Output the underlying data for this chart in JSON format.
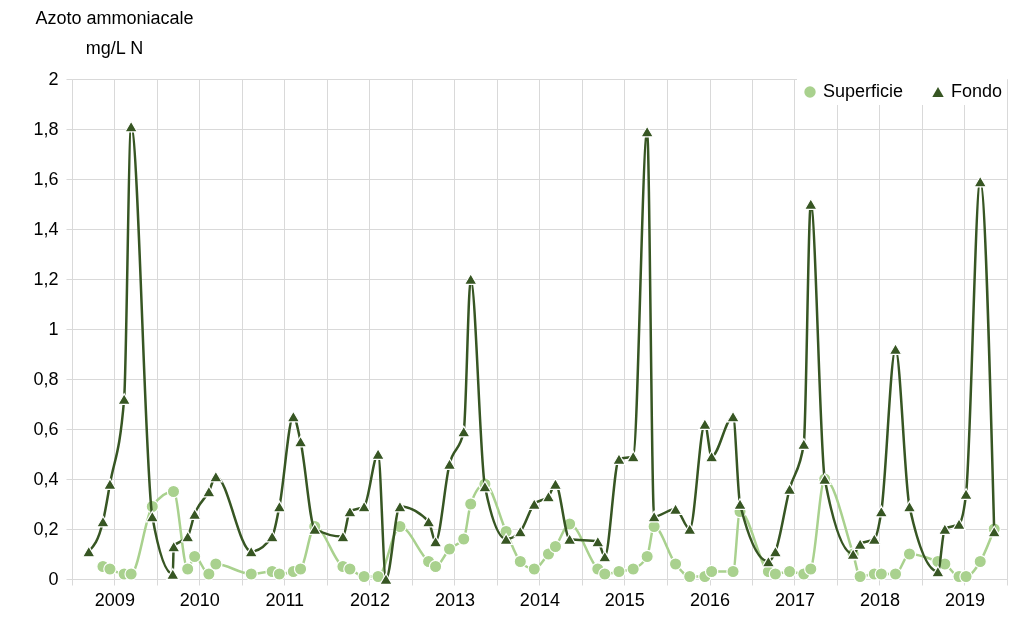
{
  "chart_data": {
    "type": "line",
    "ylabel": "Azoto ammoniacale\nmg/L N",
    "xlim": [
      "2009-01-01",
      "2020-01-01"
    ],
    "xticks": [
      {
        "value": "2009-01-01",
        "label": null
      },
      {
        "value": "2009-07-02",
        "label": "2009"
      },
      {
        "value": "2010-01-01",
        "label": null
      },
      {
        "value": "2010-07-02",
        "label": "2010"
      },
      {
        "value": "2011-01-01",
        "label": null
      },
      {
        "value": "2011-07-02",
        "label": "2011"
      },
      {
        "value": "2012-01-01",
        "label": null
      },
      {
        "value": "2012-07-02",
        "label": "2012"
      },
      {
        "value": "2013-01-01",
        "label": null
      },
      {
        "value": "2013-07-02",
        "label": "2013"
      },
      {
        "value": "2014-01-01",
        "label": null
      },
      {
        "value": "2014-07-02",
        "label": "2014"
      },
      {
        "value": "2015-01-01",
        "label": null
      },
      {
        "value": "2015-07-02",
        "label": "2015"
      },
      {
        "value": "2016-01-01",
        "label": null
      },
      {
        "value": "2016-07-02",
        "label": "2016"
      },
      {
        "value": "2017-01-01",
        "label": null
      },
      {
        "value": "2017-07-02",
        "label": "2017"
      },
      {
        "value": "2018-01-01",
        "label": null
      },
      {
        "value": "2018-07-02",
        "label": "2018"
      },
      {
        "value": "2019-01-01",
        "label": null
      },
      {
        "value": "2019-07-02",
        "label": "2019"
      },
      {
        "value": "2020-01-01",
        "label": null
      }
    ],
    "ylim": [
      0,
      2
    ],
    "yticks": [
      0,
      {
        "value": 0.2,
        "label": "0,2"
      },
      {
        "value": 0.4,
        "label": "0,4"
      },
      {
        "value": 0.6,
        "label": "0,6"
      },
      {
        "value": 0.8,
        "label": "0,8"
      },
      1,
      {
        "value": 1.2,
        "label": "1,2"
      },
      {
        "value": 1.4,
        "label": "1,4"
      },
      {
        "value": 1.6,
        "label": "1,6"
      },
      {
        "value": 1.8,
        "label": "1,8"
      },
      2
    ],
    "grid": true,
    "legend": "top right",
    "series": [
      {
        "name": "Superficie",
        "color": "#a9d18e",
        "marker": "circle",
        "x": [
          "2009-05-14",
          "2009-06-13",
          "2009-08-13",
          "2009-09-12",
          "2009-12-12",
          "2010-03-13",
          "2010-05-13",
          "2010-06-12",
          "2010-08-12",
          "2010-09-11",
          "2011-02-10",
          "2011-05-11",
          "2011-06-11",
          "2011-08-10",
          "2011-09-10",
          "2011-11-10",
          "2012-03-10",
          "2012-04-09",
          "2012-06-09",
          "2012-08-08",
          "2012-11-10",
          "2013-03-13",
          "2013-04-12",
          "2013-06-11",
          "2013-08-11",
          "2013-09-10",
          "2013-11-10",
          "2014-02-09",
          "2014-04-11",
          "2014-06-10",
          "2014-08-10",
          "2014-09-09",
          "2014-11-09",
          "2015-03-10",
          "2015-04-09",
          "2015-06-09",
          "2015-08-09",
          "2015-10-08",
          "2015-11-07",
          "2016-02-07",
          "2016-04-08",
          "2016-06-12",
          "2016-07-11",
          "2016-10-11",
          "2016-11-10",
          "2017-03-12",
          "2017-04-11",
          "2017-06-11",
          "2017-08-11",
          "2017-09-10",
          "2017-11-09",
          "2018-03-11",
          "2018-04-10",
          "2018-06-10",
          "2018-07-10",
          "2018-09-09",
          "2018-11-08",
          "2019-03-10",
          "2019-04-09",
          "2019-06-09",
          "2019-07-09",
          "2019-09-08",
          "2019-11-07"
        ],
        "values": [
          0.05,
          0.04,
          0.02,
          0.02,
          0.29,
          0.35,
          0.04,
          0.09,
          0.02,
          0.06,
          0.02,
          0.03,
          0.02,
          0.03,
          0.04,
          0.21,
          0.05,
          0.04,
          0.01,
          0.01,
          0.21,
          0.07,
          0.05,
          0.12,
          0.16,
          0.3,
          0.38,
          0.19,
          0.07,
          0.04,
          0.1,
          0.13,
          0.22,
          0.04,
          0.02,
          0.03,
          0.04,
          0.09,
          0.21,
          0.06,
          0.01,
          0.01,
          0.03,
          0.03,
          0.27,
          0.03,
          0.02,
          0.03,
          0.02,
          0.04,
          0.4,
          0.1,
          0.01,
          0.02,
          0.02,
          0.02,
          0.1,
          0.07,
          0.06,
          0.01,
          0.01,
          0.07,
          0.2
        ]
      },
      {
        "name": "Fondo",
        "color": "#375623",
        "marker": "triangle",
        "x": [
          "2009-03-14",
          "2009-05-14",
          "2009-06-13",
          "2009-08-13",
          "2009-09-12",
          "2009-12-12",
          "2010-03-10",
          "2010-03-14",
          "2010-05-13",
          "2010-06-12",
          "2010-08-12",
          "2010-09-11",
          "2011-02-10",
          "2011-05-11",
          "2011-06-11",
          "2011-08-10",
          "2011-09-10",
          "2011-11-10",
          "2012-03-10",
          "2012-04-09",
          "2012-06-09",
          "2012-08-08",
          "2012-09-11",
          "2012-11-10",
          "2013-03-13",
          "2013-04-12",
          "2013-06-11",
          "2013-08-11",
          "2013-09-10",
          "2013-11-10",
          "2014-02-09",
          "2014-04-11",
          "2014-06-10",
          "2014-08-10",
          "2014-09-09",
          "2014-11-09",
          "2015-03-10",
          "2015-04-09",
          "2015-06-09",
          "2015-08-09",
          "2015-10-08",
          "2015-11-07",
          "2016-02-07",
          "2016-04-08",
          "2016-06-12",
          "2016-07-11",
          "2016-10-11",
          "2016-11-10",
          "2017-03-12",
          "2017-04-11",
          "2017-06-11",
          "2017-08-11",
          "2017-09-10",
          "2017-11-09",
          "2018-03-11",
          "2018-04-10",
          "2018-06-10",
          "2018-07-10",
          "2018-09-09",
          "2018-11-08",
          "2019-03-10",
          "2019-04-09",
          "2019-06-09",
          "2019-07-09",
          "2019-09-08",
          "2019-11-07"
        ],
        "values": [
          0.11,
          0.23,
          0.38,
          0.72,
          1.81,
          0.25,
          0.02,
          0.13,
          0.17,
          0.26,
          0.35,
          0.41,
          0.11,
          0.17,
          0.29,
          0.65,
          0.55,
          0.2,
          0.17,
          0.27,
          0.29,
          0.5,
          0.0,
          0.29,
          0.23,
          0.15,
          0.46,
          0.59,
          1.2,
          0.37,
          0.16,
          0.19,
          0.3,
          0.33,
          0.38,
          0.16,
          0.15,
          0.09,
          0.48,
          0.49,
          1.79,
          0.25,
          0.28,
          0.2,
          0.62,
          0.49,
          0.65,
          0.3,
          0.07,
          0.11,
          0.36,
          0.54,
          1.5,
          0.4,
          0.1,
          0.14,
          0.16,
          0.27,
          0.92,
          0.29,
          0.03,
          0.2,
          0.22,
          0.34,
          1.59,
          0.19
        ]
      }
    ]
  }
}
